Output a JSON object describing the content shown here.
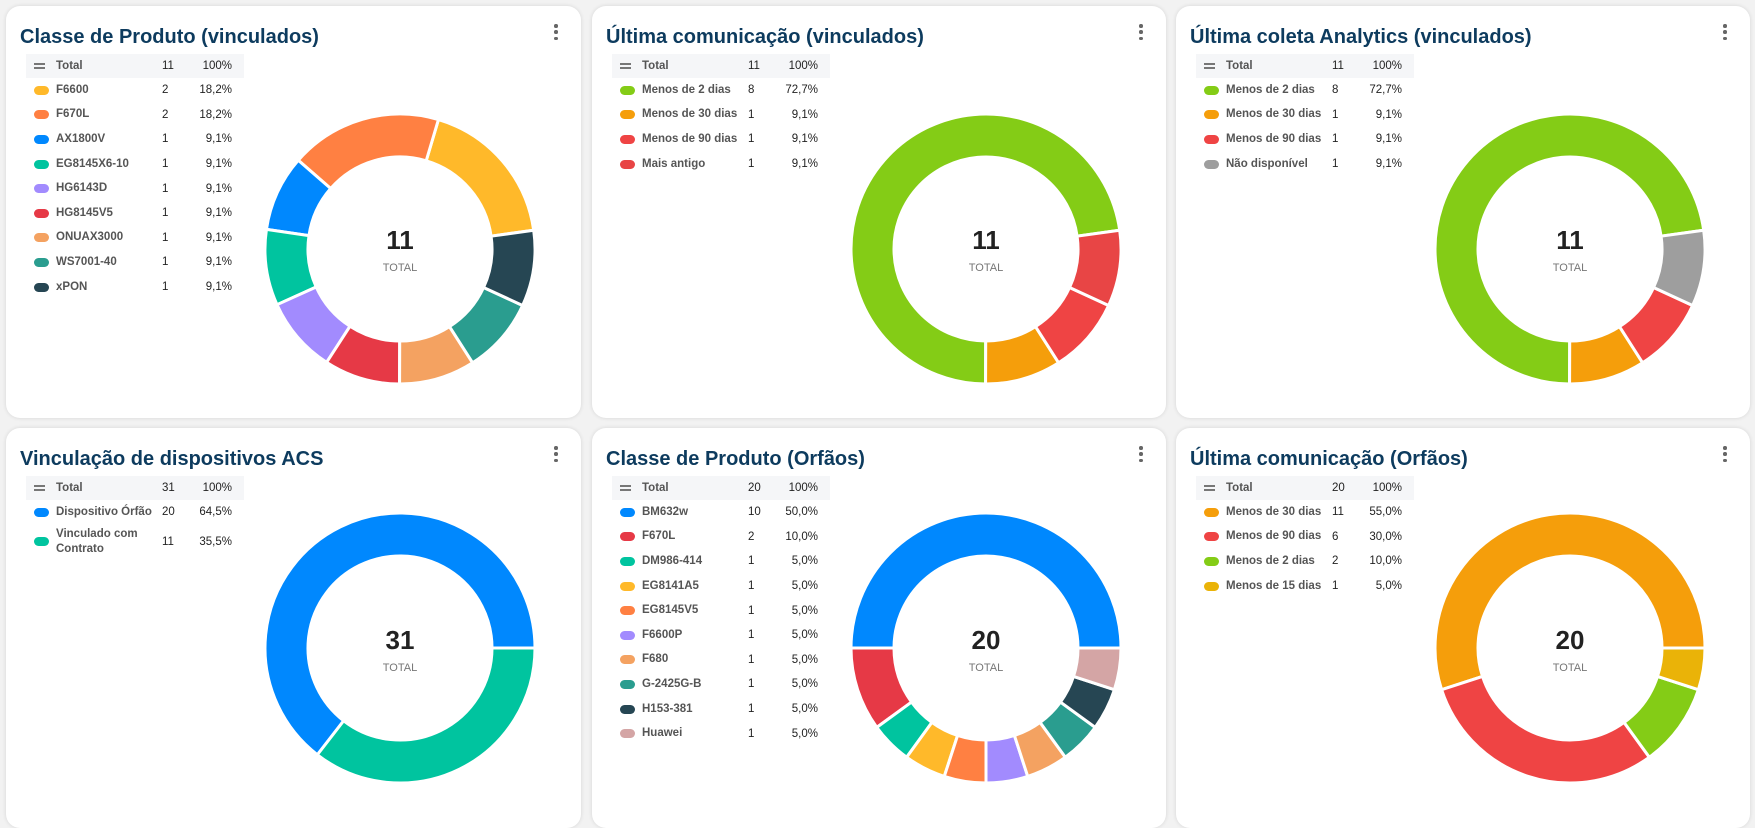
{
  "center_label": "TOTAL",
  "total_label": "Total",
  "charts": [
    {
      "title": "Classe de Produto (vinculados)",
      "total": "11",
      "total_pct": "100%",
      "items": [
        {
          "label": "F6600",
          "count": "2",
          "pct": "18,2%",
          "value": 2,
          "color": "#FFB92A"
        },
        {
          "label": "F670L",
          "count": "2",
          "pct": "18,2%",
          "value": 2,
          "color": "#FF8042"
        },
        {
          "label": "AX1800V",
          "count": "1",
          "pct": "9,1%",
          "value": 1,
          "color": "#0088FE"
        },
        {
          "label": "EG8145X6-10",
          "count": "1",
          "pct": "9,1%",
          "value": 1,
          "color": "#00C49F"
        },
        {
          "label": "HG6143D",
          "count": "1",
          "pct": "9,1%",
          "value": 1,
          "color": "#A28BFE"
        },
        {
          "label": "HG8145V5",
          "count": "1",
          "pct": "9,1%",
          "value": 1,
          "color": "#E63946"
        },
        {
          "label": "ONUAX3000",
          "count": "1",
          "pct": "9,1%",
          "value": 1,
          "color": "#F4A261"
        },
        {
          "label": "WS7001-40",
          "count": "1",
          "pct": "9,1%",
          "value": 1,
          "color": "#2A9D8F"
        },
        {
          "label": "xPON",
          "count": "1",
          "pct": "9,1%",
          "value": 1,
          "color": "#264653"
        }
      ]
    },
    {
      "title": "Última comunicação (vinculados)",
      "total": "11",
      "total_pct": "100%",
      "items": [
        {
          "label": "Menos de 2 dias",
          "count": "8",
          "pct": "72,7%",
          "value": 8,
          "color": "#84CC16"
        },
        {
          "label": "Menos de 30 dias",
          "count": "1",
          "pct": "9,1%",
          "value": 1,
          "color": "#F59E0B"
        },
        {
          "label": "Menos de 90 dias",
          "count": "1",
          "pct": "9,1%",
          "value": 1,
          "color": "#EF4444"
        },
        {
          "label": "Mais antigo",
          "count": "1",
          "pct": "9,1%",
          "value": 1,
          "color": "#E84545"
        }
      ]
    },
    {
      "title": "Última coleta Analytics (vinculados)",
      "total": "11",
      "total_pct": "100%",
      "items": [
        {
          "label": "Menos de 2 dias",
          "count": "8",
          "pct": "72,7%",
          "value": 8,
          "color": "#84CC16"
        },
        {
          "label": "Menos de 30 dias",
          "count": "1",
          "pct": "9,1%",
          "value": 1,
          "color": "#F59E0B"
        },
        {
          "label": "Menos de 90 dias",
          "count": "1",
          "pct": "9,1%",
          "value": 1,
          "color": "#EF4444"
        },
        {
          "label": "Não disponível",
          "count": "1",
          "pct": "9,1%",
          "value": 1,
          "color": "#9E9E9E"
        }
      ]
    },
    {
      "title": "Vinculação de dispositivos ACS",
      "total": "31",
      "total_pct": "100%",
      "items": [
        {
          "label": "Dispositivo Órfão",
          "count": "20",
          "pct": "64,5%",
          "value": 20,
          "color": "#0088FE"
        },
        {
          "label": "Vinculado com Contrato",
          "count": "11",
          "pct": "35,5%",
          "value": 11,
          "color": "#00C49F"
        }
      ]
    },
    {
      "title": "Classe de Produto (Orfãos)",
      "total": "20",
      "total_pct": "100%",
      "items": [
        {
          "label": "BM632w",
          "count": "10",
          "pct": "50,0%",
          "value": 10,
          "color": "#0088FE"
        },
        {
          "label": "F670L",
          "count": "2",
          "pct": "10,0%",
          "value": 2,
          "color": "#E63946"
        },
        {
          "label": "DM986-414",
          "count": "1",
          "pct": "5,0%",
          "value": 1,
          "color": "#00C49F"
        },
        {
          "label": "EG8141A5",
          "count": "1",
          "pct": "5,0%",
          "value": 1,
          "color": "#FFB92A"
        },
        {
          "label": "EG8145V5",
          "count": "1",
          "pct": "5,0%",
          "value": 1,
          "color": "#FF8042"
        },
        {
          "label": "F6600P",
          "count": "1",
          "pct": "5,0%",
          "value": 1,
          "color": "#A28BFE"
        },
        {
          "label": "F680",
          "count": "1",
          "pct": "5,0%",
          "value": 1,
          "color": "#F4A261"
        },
        {
          "label": "G-2425G-B",
          "count": "1",
          "pct": "5,0%",
          "value": 1,
          "color": "#2A9D8F"
        },
        {
          "label": "H153-381",
          "count": "1",
          "pct": "5,0%",
          "value": 1,
          "color": "#264653"
        },
        {
          "label": "Huawei",
          "count": "1",
          "pct": "5,0%",
          "value": 1,
          "color": "#D4A5A5"
        }
      ]
    },
    {
      "title": "Última comunicação (Orfãos)",
      "total": "20",
      "total_pct": "100%",
      "items": [
        {
          "label": "Menos de 30 dias",
          "count": "11",
          "pct": "55,0%",
          "value": 11,
          "color": "#F59E0B"
        },
        {
          "label": "Menos de 90 dias",
          "count": "6",
          "pct": "30,0%",
          "value": 6,
          "color": "#EF4444"
        },
        {
          "label": "Menos de 2 dias",
          "count": "2",
          "pct": "10,0%",
          "value": 2,
          "color": "#84CC16"
        },
        {
          "label": "Menos de 15 dias",
          "count": "1",
          "pct": "5,0%",
          "value": 1,
          "color": "#EAB308"
        }
      ]
    }
  ]
}
